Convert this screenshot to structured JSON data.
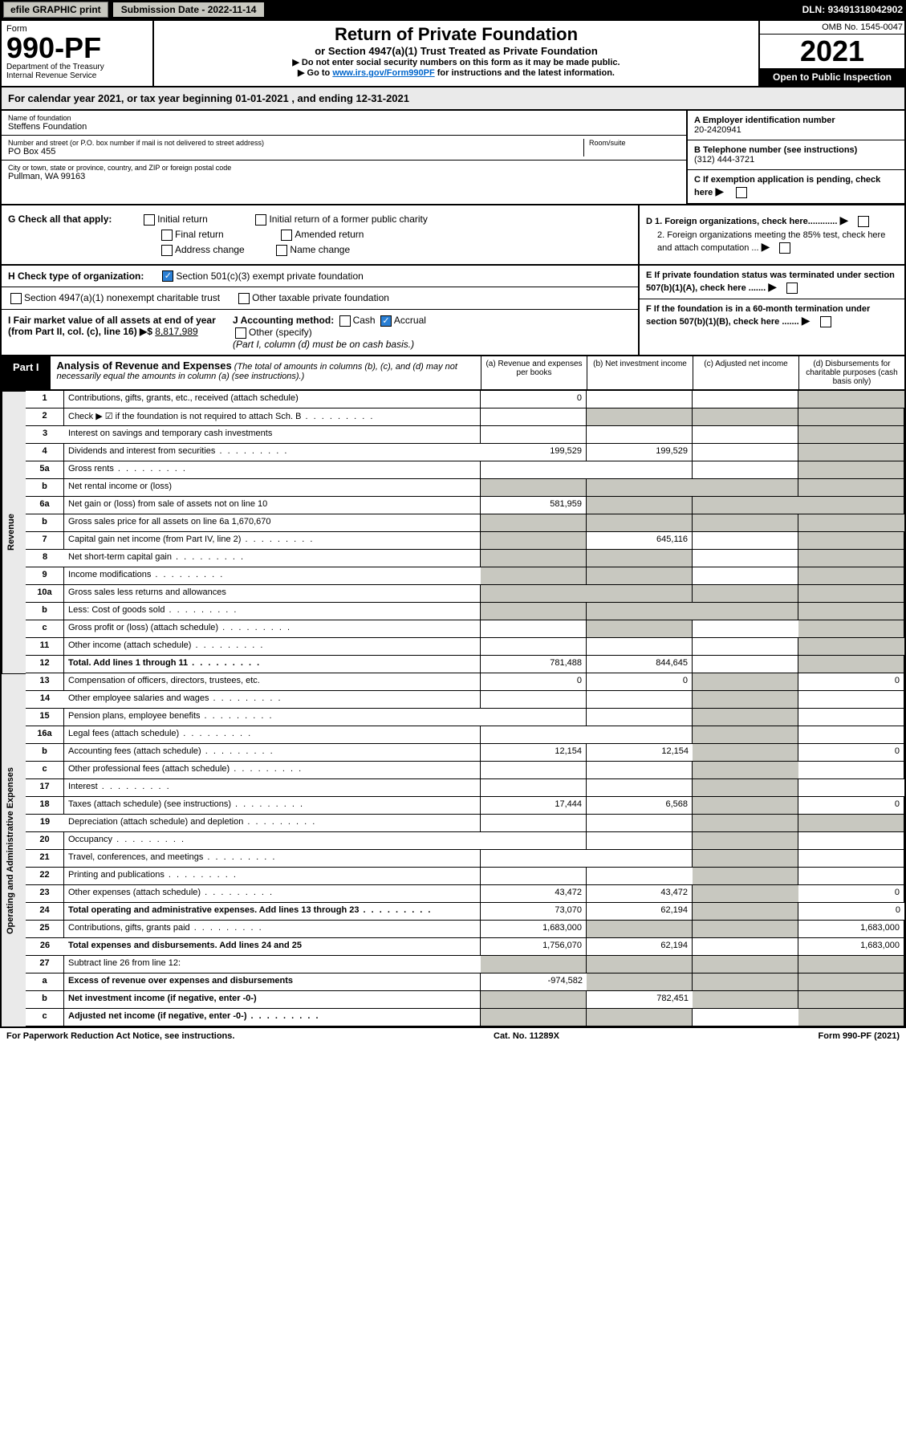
{
  "topbar": {
    "efile": "efile GRAPHIC print",
    "submission": "Submission Date - 2022-11-14",
    "dln": "DLN: 93491318042902"
  },
  "header": {
    "form_word": "Form",
    "form_no": "990-PF",
    "dept": "Department of the Treasury",
    "irs": "Internal Revenue Service",
    "title": "Return of Private Foundation",
    "subtitle": "or Section 4947(a)(1) Trust Treated as Private Foundation",
    "warn": "▶ Do not enter social security numbers on this form as it may be made public.",
    "goto_pre": "▶ Go to ",
    "goto_link": "www.irs.gov/Form990PF",
    "goto_post": " for instructions and the latest information.",
    "omb": "OMB No. 1545-0047",
    "year": "2021",
    "open": "Open to Public Inspection"
  },
  "cal": "For calendar year 2021, or tax year beginning 01-01-2021                              , and ending 12-31-2021",
  "org": {
    "name_lbl": "Name of foundation",
    "name": "Steffens Foundation",
    "addr_lbl": "Number and street (or P.O. box number if mail is not delivered to street address)",
    "addr": "PO Box 455",
    "room_lbl": "Room/suite",
    "city_lbl": "City or town, state or province, country, and ZIP or foreign postal code",
    "city": "Pullman, WA  99163",
    "ein_lbl": "A Employer identification number",
    "ein": "20-2420941",
    "tel_lbl": "B Telephone number (see instructions)",
    "tel": "(312) 444-3721",
    "c_lbl": "C If exemption application is pending, check here"
  },
  "checks": {
    "g": "G Check all that apply:",
    "g_opts": [
      "Initial return",
      "Final return",
      "Address change",
      "Initial return of a former public charity",
      "Amended return",
      "Name change"
    ],
    "h": "H Check type of organization:",
    "h1": "Section 501(c)(3) exempt private foundation",
    "h2": "Section 4947(a)(1) nonexempt charitable trust",
    "h3": "Other taxable private foundation",
    "i": "I Fair market value of all assets at end of year (from Part II, col. (c), line 16) ▶$",
    "i_val": "8,817,989",
    "j": "J Accounting method:",
    "j_cash": "Cash",
    "j_acc": "Accrual",
    "j_other": "Other (specify)",
    "j_note": "(Part I, column (d) must be on cash basis.)",
    "d1": "D 1. Foreign organizations, check here............",
    "d2": "2. Foreign organizations meeting the 85% test, check here and attach computation ...",
    "e": "E  If private foundation status was terminated under section 507(b)(1)(A), check here .......",
    "f": "F  If the foundation is in a 60-month termination under section 507(b)(1)(B), check here .......",
    "arrow": "▶"
  },
  "part1": {
    "label": "Part I",
    "title": "Analysis of Revenue and Expenses",
    "note": "(The total of amounts in columns (b), (c), and (d) may not necessarily equal the amounts in column (a) (see instructions).)",
    "cols": {
      "a": "(a)   Revenue and expenses per books",
      "b": "(b)   Net investment income",
      "c": "(c)   Adjusted net income",
      "d": "(d)   Disbursements for charitable purposes (cash basis only)"
    }
  },
  "side_rev": "Revenue",
  "side_exp": "Operating and Administrative Expenses",
  "rows": [
    {
      "n": "1",
      "d": "Contributions, gifts, grants, etc., received (attach schedule)",
      "a": "0"
    },
    {
      "n": "2",
      "d": "Check ▶ ☑ if the foundation is not required to attach Sch. B",
      "grey_bcd": true,
      "dotted": true
    },
    {
      "n": "3",
      "d": "Interest on savings and temporary cash investments"
    },
    {
      "n": "4",
      "d": "Dividends and interest from securities",
      "a": "199,529",
      "b": "199,529",
      "dotted": true
    },
    {
      "n": "5a",
      "d": "Gross rents",
      "dotted": true
    },
    {
      "n": "b",
      "d": "Net rental income or (loss)",
      "grey_abcd": true
    },
    {
      "n": "6a",
      "d": "Net gain or (loss) from sale of assets not on line 10",
      "a": "581,959",
      "grey_bc": true
    },
    {
      "n": "b",
      "d": "Gross sales price for all assets on line 6a              1,670,670",
      "grey_abcd": true
    },
    {
      "n": "7",
      "d": "Capital gain net income (from Part IV, line 2)",
      "b": "645,116",
      "grey_a": true,
      "dotted": true
    },
    {
      "n": "8",
      "d": "Net short-term capital gain",
      "grey_ab": true,
      "dotted": true
    },
    {
      "n": "9",
      "d": "Income modifications",
      "grey_ab": true,
      "dotted": true
    },
    {
      "n": "10a",
      "d": "Gross sales less returns and allowances",
      "grey_abcd": true
    },
    {
      "n": "b",
      "d": "Less: Cost of goods sold",
      "grey_abcd": true,
      "dotted": true
    },
    {
      "n": "c",
      "d": "Gross profit or (loss) (attach schedule)",
      "grey_b": true,
      "dotted": true
    },
    {
      "n": "11",
      "d": "Other income (attach schedule)",
      "dotted": true
    },
    {
      "n": "12",
      "d": "Total. Add lines 1 through 11",
      "a": "781,488",
      "b": "844,645",
      "bold": true,
      "dotted": true
    },
    {
      "n": "13",
      "d": "Compensation of officers, directors, trustees, etc.",
      "a": "0",
      "b": "0",
      "dd": "0"
    },
    {
      "n": "14",
      "d": "Other employee salaries and wages",
      "dotted": true
    },
    {
      "n": "15",
      "d": "Pension plans, employee benefits",
      "dotted": true
    },
    {
      "n": "16a",
      "d": "Legal fees (attach schedule)",
      "dotted": true
    },
    {
      "n": "b",
      "d": "Accounting fees (attach schedule)",
      "a": "12,154",
      "b": "12,154",
      "dd": "0",
      "dotted": true
    },
    {
      "n": "c",
      "d": "Other professional fees (attach schedule)",
      "dotted": true
    },
    {
      "n": "17",
      "d": "Interest",
      "dotted": true
    },
    {
      "n": "18",
      "d": "Taxes (attach schedule) (see instructions)",
      "a": "17,444",
      "b": "6,568",
      "dd": "0",
      "dotted": true
    },
    {
      "n": "19",
      "d": "Depreciation (attach schedule) and depletion",
      "grey_d": true,
      "dotted": true
    },
    {
      "n": "20",
      "d": "Occupancy",
      "dotted": true
    },
    {
      "n": "21",
      "d": "Travel, conferences, and meetings",
      "dotted": true
    },
    {
      "n": "22",
      "d": "Printing and publications",
      "dotted": true
    },
    {
      "n": "23",
      "d": "Other expenses (attach schedule)",
      "a": "43,472",
      "b": "43,472",
      "dd": "0",
      "dotted": true
    },
    {
      "n": "24",
      "d": "Total operating and administrative expenses. Add lines 13 through 23",
      "a": "73,070",
      "b": "62,194",
      "dd": "0",
      "bold": true,
      "dotted": true
    },
    {
      "n": "25",
      "d": "Contributions, gifts, grants paid",
      "a": "1,683,000",
      "dd": "1,683,000",
      "grey_bc": true,
      "dotted": true
    },
    {
      "n": "26",
      "d": "Total expenses and disbursements. Add lines 24 and 25",
      "a": "1,756,070",
      "b": "62,194",
      "dd": "1,683,000",
      "bold": true
    },
    {
      "n": "27",
      "d": "Subtract line 26 from line 12:",
      "grey_abcd": true
    },
    {
      "n": "a",
      "d": "Excess of revenue over expenses and disbursements",
      "a": "-974,582",
      "grey_bcd": true,
      "bold": true
    },
    {
      "n": "b",
      "d": "Net investment income (if negative, enter -0-)",
      "b": "782,451",
      "grey_acd": true,
      "bold": true
    },
    {
      "n": "c",
      "d": "Adjusted net income (if negative, enter -0-)",
      "grey_abd": true,
      "bold": true,
      "dotted": true
    }
  ],
  "footer": {
    "left": "For Paperwork Reduction Act Notice, see instructions.",
    "mid": "Cat. No. 11289X",
    "right": "Form 990-PF (2021)"
  }
}
